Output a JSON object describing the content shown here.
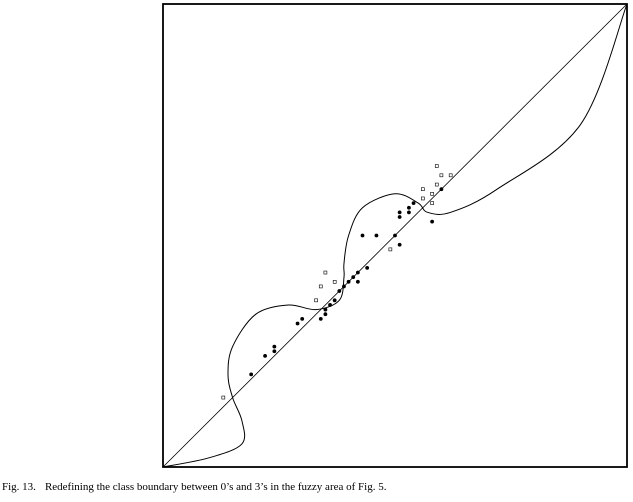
{
  "caption": {
    "label": "Fig. 13.",
    "text": "Redefining the class boundary between 0’s and 3’s in the fuzzy area of Fig. 5."
  },
  "chart_data": {
    "type": "scatter",
    "xlim": [
      0,
      1
    ],
    "ylim": [
      0,
      1
    ],
    "grid": false,
    "legend": "none",
    "axes_ticks": false,
    "reference_line": [
      [
        0,
        0
      ],
      [
        1,
        1
      ]
    ],
    "series": [
      {
        "marker": "filled-circle",
        "points": [
          [
            0.19,
            0.2
          ],
          [
            0.22,
            0.24
          ],
          [
            0.24,
            0.25
          ],
          [
            0.24,
            0.26
          ],
          [
            0.29,
            0.31
          ],
          [
            0.3,
            0.32
          ],
          [
            0.34,
            0.32
          ],
          [
            0.35,
            0.33
          ],
          [
            0.35,
            0.34
          ],
          [
            0.36,
            0.35
          ],
          [
            0.37,
            0.36
          ],
          [
            0.38,
            0.38
          ],
          [
            0.39,
            0.39
          ],
          [
            0.4,
            0.4
          ],
          [
            0.41,
            0.41
          ],
          [
            0.42,
            0.42
          ],
          [
            0.42,
            0.4
          ],
          [
            0.44,
            0.43
          ],
          [
            0.43,
            0.5
          ],
          [
            0.46,
            0.5
          ],
          [
            0.5,
            0.5
          ],
          [
            0.51,
            0.48
          ],
          [
            0.51,
            0.54
          ],
          [
            0.51,
            0.55
          ],
          [
            0.53,
            0.55
          ],
          [
            0.53,
            0.56
          ],
          [
            0.54,
            0.57
          ],
          [
            0.58,
            0.53
          ],
          [
            0.6,
            0.6
          ]
        ]
      },
      {
        "marker": "open-square",
        "points": [
          [
            0.13,
            0.15
          ],
          [
            0.33,
            0.36
          ],
          [
            0.34,
            0.39
          ],
          [
            0.35,
            0.42
          ],
          [
            0.37,
            0.4
          ],
          [
            0.49,
            0.47
          ],
          [
            0.56,
            0.6
          ],
          [
            0.56,
            0.58
          ],
          [
            0.58,
            0.57
          ],
          [
            0.58,
            0.59
          ],
          [
            0.59,
            0.61
          ],
          [
            0.59,
            0.65
          ],
          [
            0.6,
            0.63
          ],
          [
            0.62,
            0.63
          ]
        ]
      }
    ],
    "boundary_curve": [
      [
        0.0,
        0.0
      ],
      [
        0.1,
        0.02
      ],
      [
        0.17,
        0.05
      ],
      [
        0.17,
        0.1
      ],
      [
        0.15,
        0.15
      ],
      [
        0.14,
        0.2
      ],
      [
        0.15,
        0.26
      ],
      [
        0.2,
        0.33
      ],
      [
        0.27,
        0.35
      ],
      [
        0.33,
        0.34
      ],
      [
        0.38,
        0.36
      ],
      [
        0.39,
        0.41
      ],
      [
        0.39,
        0.44
      ],
      [
        0.4,
        0.5
      ],
      [
        0.43,
        0.56
      ],
      [
        0.5,
        0.59
      ],
      [
        0.55,
        0.57
      ],
      [
        0.57,
        0.55
      ],
      [
        0.62,
        0.55
      ],
      [
        0.72,
        0.6
      ],
      [
        0.9,
        0.74
      ],
      [
        1.0,
        1.0
      ]
    ]
  }
}
